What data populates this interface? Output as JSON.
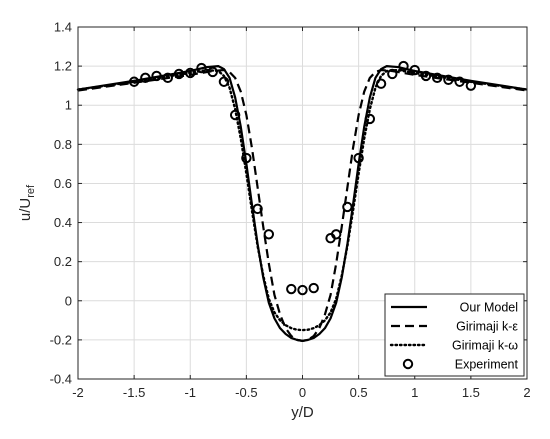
{
  "chart_data": {
    "type": "line",
    "xlabel": "y/D",
    "ylabel": "u/U",
    "ylabel_sub": "ref",
    "xlim": [
      -2,
      2
    ],
    "ylim": [
      -0.4,
      1.4
    ],
    "xticks": [
      "-2",
      "-1.5",
      "-1",
      "-0.5",
      "0",
      "0.5",
      "1",
      "1.5",
      "2"
    ],
    "yticks": [
      "-0.4",
      "-0.2",
      "0",
      "0.2",
      "0.4",
      "0.6",
      "0.8",
      "1",
      "1.2",
      "1.4"
    ],
    "grid": true,
    "legend_position": "bottom-right",
    "series": [
      {
        "name": "Our Model",
        "style": "solid",
        "x": [
          -2.0,
          -1.5,
          -1.0,
          -0.85,
          -0.75,
          -0.7,
          -0.65,
          -0.6,
          -0.55,
          -0.5,
          -0.45,
          -0.4,
          -0.35,
          -0.3,
          -0.25,
          -0.2,
          -0.15,
          -0.1,
          -0.05,
          0.0,
          0.05,
          0.1,
          0.15,
          0.2,
          0.25,
          0.3,
          0.35,
          0.4,
          0.45,
          0.5,
          0.55,
          0.6,
          0.65,
          0.7,
          0.75,
          0.85,
          1.0,
          1.5,
          2.0
        ],
        "y": [
          1.08,
          1.125,
          1.175,
          1.195,
          1.2,
          1.185,
          1.14,
          1.04,
          0.89,
          0.7,
          0.49,
          0.29,
          0.12,
          -0.01,
          -0.09,
          -0.14,
          -0.17,
          -0.19,
          -0.2,
          -0.205,
          -0.2,
          -0.19,
          -0.17,
          -0.14,
          -0.09,
          -0.01,
          0.12,
          0.29,
          0.49,
          0.7,
          0.89,
          1.04,
          1.14,
          1.185,
          1.2,
          1.195,
          1.175,
          1.125,
          1.08
        ]
      },
      {
        "name": "Girimaji k-ε",
        "style": "dashed",
        "x": [
          -2.0,
          -1.5,
          -1.0,
          -0.8,
          -0.7,
          -0.65,
          -0.6,
          -0.55,
          -0.5,
          -0.45,
          -0.4,
          -0.35,
          -0.3,
          -0.25,
          -0.2,
          -0.15,
          -0.1,
          -0.05,
          0.0,
          0.05,
          0.1,
          0.15,
          0.2,
          0.25,
          0.3,
          0.35,
          0.4,
          0.45,
          0.5,
          0.55,
          0.6,
          0.65,
          0.7,
          0.8,
          1.0,
          1.5,
          2.0
        ],
        "y": [
          1.075,
          1.115,
          1.155,
          1.175,
          1.18,
          1.17,
          1.14,
          1.07,
          0.95,
          0.78,
          0.58,
          0.38,
          0.19,
          0.03,
          -0.07,
          -0.14,
          -0.18,
          -0.2,
          -0.205,
          -0.2,
          -0.18,
          -0.14,
          -0.07,
          0.03,
          0.19,
          0.38,
          0.58,
          0.78,
          0.95,
          1.07,
          1.14,
          1.17,
          1.18,
          1.175,
          1.155,
          1.115,
          1.075
        ]
      },
      {
        "name": "Girimaji k-ω",
        "style": "dotted",
        "x": [
          -2.0,
          -1.5,
          -1.0,
          -0.85,
          -0.75,
          -0.7,
          -0.65,
          -0.6,
          -0.55,
          -0.5,
          -0.45,
          -0.4,
          -0.35,
          -0.3,
          -0.25,
          -0.2,
          -0.15,
          -0.1,
          -0.05,
          0.0,
          0.05,
          0.1,
          0.15,
          0.2,
          0.25,
          0.3,
          0.35,
          0.4,
          0.45,
          0.5,
          0.55,
          0.6,
          0.65,
          0.7,
          0.75,
          0.85,
          1.0,
          1.5,
          2.0
        ],
        "y": [
          1.08,
          1.12,
          1.165,
          1.18,
          1.175,
          1.15,
          1.09,
          0.98,
          0.83,
          0.65,
          0.46,
          0.28,
          0.13,
          0.01,
          -0.06,
          -0.1,
          -0.125,
          -0.14,
          -0.148,
          -0.15,
          -0.148,
          -0.14,
          -0.125,
          -0.1,
          -0.06,
          0.01,
          0.13,
          0.28,
          0.46,
          0.65,
          0.83,
          0.98,
          1.09,
          1.15,
          1.175,
          1.18,
          1.165,
          1.12,
          1.08
        ]
      },
      {
        "name": "Experiment",
        "style": "markers",
        "x": [
          -1.5,
          -1.4,
          -1.3,
          -1.2,
          -1.1,
          -1.0,
          -0.9,
          -0.8,
          -0.7,
          -0.6,
          -0.5,
          -0.4,
          -0.3,
          -0.1,
          0.0,
          0.1,
          0.25,
          0.3,
          0.4,
          0.5,
          0.6,
          0.7,
          0.8,
          0.9,
          1.0,
          1.1,
          1.2,
          1.3,
          1.4,
          1.5
        ],
        "y": [
          1.12,
          1.14,
          1.15,
          1.14,
          1.16,
          1.165,
          1.19,
          1.17,
          1.12,
          0.95,
          0.73,
          0.47,
          0.34,
          0.06,
          0.055,
          0.065,
          0.32,
          0.34,
          0.48,
          0.73,
          0.93,
          1.11,
          1.16,
          1.2,
          1.18,
          1.15,
          1.14,
          1.13,
          1.12,
          1.1
        ]
      }
    ]
  }
}
